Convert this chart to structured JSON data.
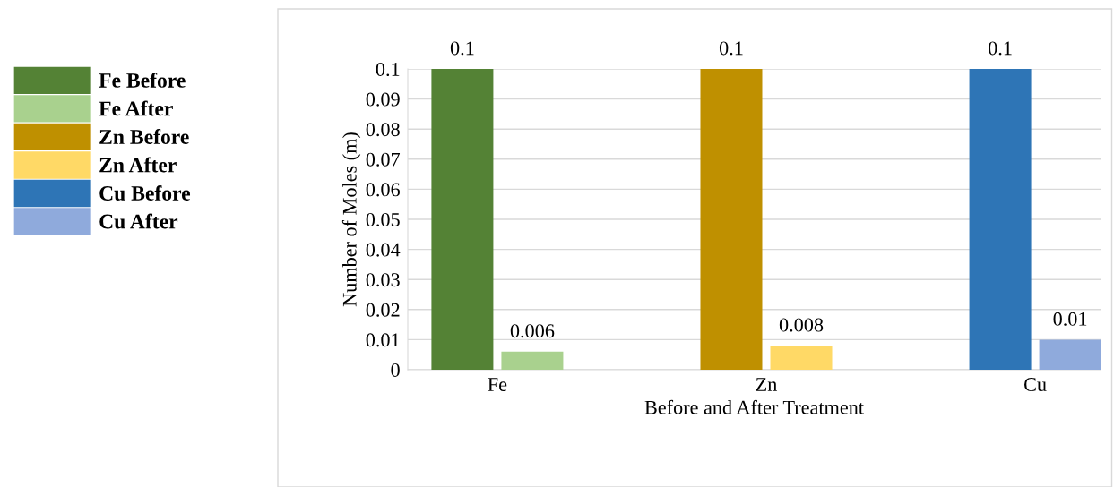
{
  "chart_data": {
    "type": "bar",
    "xlabel": "Before and After Treatment",
    "ylabel": "Number of Moles (m)",
    "categories": [
      "Fe",
      "Zn",
      "Cu"
    ],
    "series": [
      {
        "name": "Fe Before",
        "color": "#548235",
        "values": [
          0.1,
          null,
          null
        ]
      },
      {
        "name": "Fe After",
        "color": "#a9d18e",
        "values": [
          0.006,
          null,
          null
        ]
      },
      {
        "name": "Zn Before",
        "color": "#bf9000",
        "values": [
          null,
          0.1,
          null
        ]
      },
      {
        "name": "Zn After",
        "color": "#ffd966",
        "values": [
          null,
          0.008,
          null
        ]
      },
      {
        "name": "Cu Before",
        "color": "#2e75b6",
        "values": [
          null,
          null,
          0.1
        ]
      },
      {
        "name": "Cu After",
        "color": "#8faadc",
        "values": [
          null,
          null,
          0.01
        ]
      }
    ],
    "ylim": [
      0,
      0.1
    ],
    "yticks": [
      0,
      0.01,
      0.02,
      0.03,
      0.04,
      0.05,
      0.06,
      0.07,
      0.08,
      0.09,
      0.1
    ],
    "grid": "y",
    "legend": "left",
    "data_labels": true
  }
}
